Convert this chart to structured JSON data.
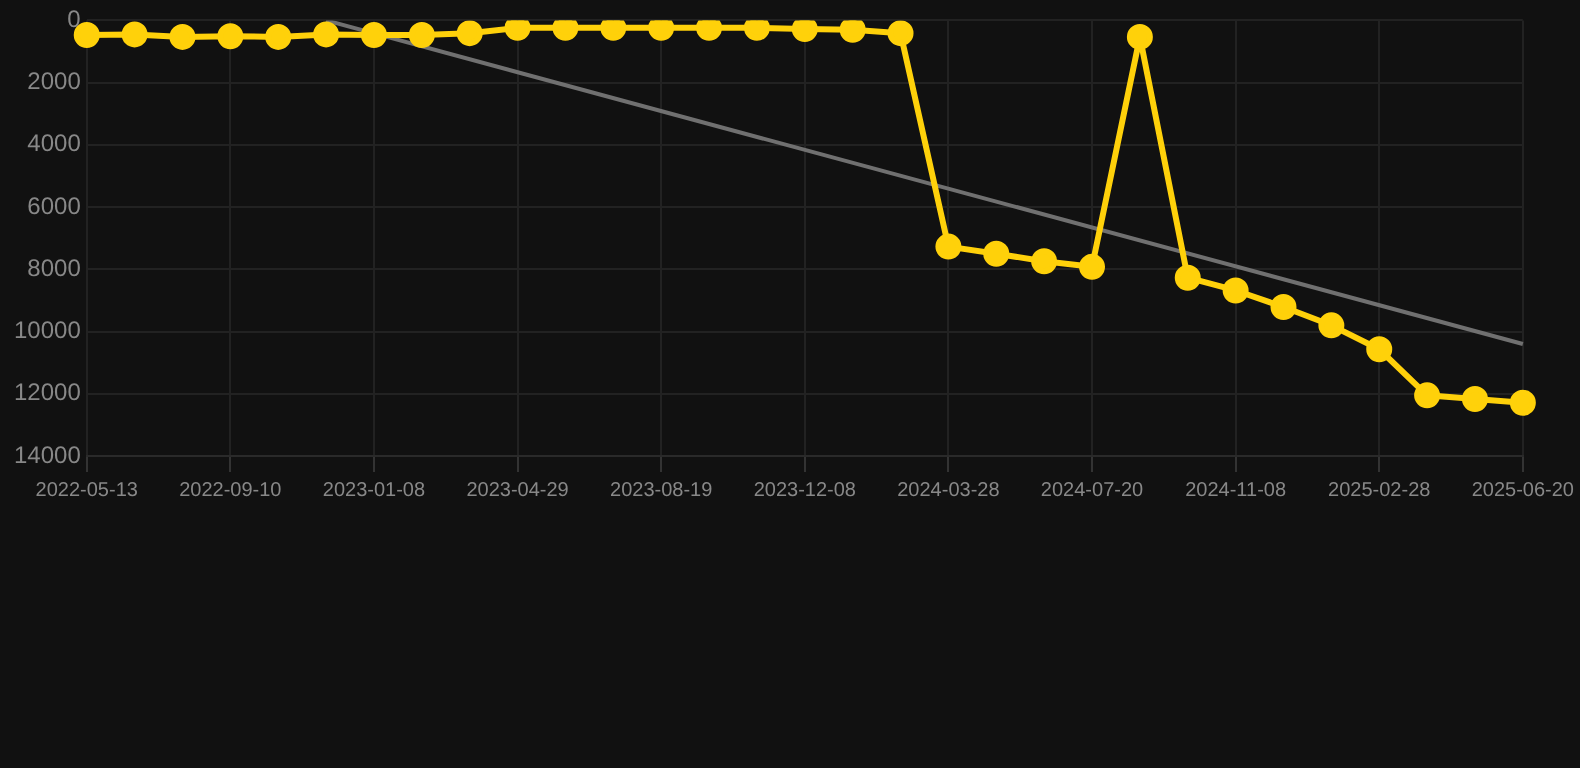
{
  "chart_data": {
    "type": "line",
    "categories": [
      "2022-05-13",
      null,
      null,
      "2022-09-10",
      null,
      null,
      "2023-01-08",
      null,
      null,
      "2023-04-29",
      null,
      null,
      "2023-08-19",
      null,
      null,
      "2023-12-08",
      null,
      null,
      "2024-03-28",
      null,
      null,
      "2024-07-20",
      null,
      null,
      "2024-11-08",
      null,
      null,
      "2025-02-28",
      null,
      null,
      "2025-06-20"
    ],
    "series": [
      {
        "color": "#ffd10a",
        "marker": "circle",
        "values": [
          470,
          450,
          530,
          510,
          530,
          450,
          470,
          470,
          410,
          240,
          240,
          240,
          240,
          240,
          240,
          280,
          300,
          410,
          7270,
          7500,
          7740,
          7920,
          530,
          8270,
          8680,
          9210,
          9800,
          10570,
          12050,
          12170,
          12290
        ]
      },
      {
        "color": "#707070",
        "marker": "none",
        "values": [
          null,
          null,
          null,
          null,
          null,
          0,
          null,
          null,
          null,
          null,
          null,
          null,
          null,
          null,
          null,
          null,
          null,
          null,
          null,
          null,
          null,
          null,
          null,
          null,
          null,
          null,
          null,
          null,
          null,
          null,
          10400
        ]
      }
    ],
    "ylim": [
      14000,
      0
    ],
    "yticks": [
      0,
      2000,
      4000,
      6000,
      8000,
      10000,
      12000,
      14000
    ],
    "grid": true,
    "legend": false,
    "line_style": "solid"
  }
}
